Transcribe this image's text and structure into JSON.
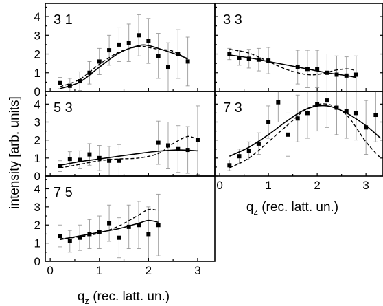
{
  "y_axis_title": "intensity [arb. units]",
  "x_axis_title_left": {
    "main": "q",
    "sub": "z",
    "rest": " (rec. latt. un.)"
  },
  "x_axis_title_right": {
    "main": "q",
    "sub": "z",
    "rest": " (rec. latt. un.)"
  },
  "x_ticks": [
    "0",
    "1",
    "2",
    "3"
  ],
  "y_ticks": [
    "0",
    "1",
    "2",
    "3",
    "4"
  ],
  "chart_data": [
    {
      "type": "scatter",
      "label": "3 1",
      "xlim": [
        -0.1,
        3.35
      ],
      "ylim": [
        0,
        4.7
      ],
      "points": [
        {
          "x": 0.2,
          "y": 0.45,
          "err": 0.3
        },
        {
          "x": 0.4,
          "y": 0.3,
          "err": 0.4
        },
        {
          "x": 0.6,
          "y": 0.55,
          "err": 0.5
        },
        {
          "x": 0.8,
          "y": 1.0,
          "err": 0.6
        },
        {
          "x": 1.0,
          "y": 1.6,
          "err": 0.7
        },
        {
          "x": 1.2,
          "y": 2.2,
          "err": 0.8
        },
        {
          "x": 1.4,
          "y": 2.5,
          "err": 0.9
        },
        {
          "x": 1.6,
          "y": 2.6,
          "err": 1.0
        },
        {
          "x": 1.8,
          "y": 3.0,
          "err": 1.1
        },
        {
          "x": 2.0,
          "y": 2.7,
          "err": 1.2
        },
        {
          "x": 2.2,
          "y": 1.9,
          "err": 1.2
        },
        {
          "x": 2.4,
          "y": 1.3,
          "err": 1.3
        },
        {
          "x": 2.6,
          "y": 2.0,
          "err": 1.3
        },
        {
          "x": 2.8,
          "y": 1.6,
          "err": 1.3
        }
      ],
      "solid": [
        [
          0.2,
          0.15
        ],
        [
          0.6,
          0.5
        ],
        [
          1.0,
          1.3
        ],
        [
          1.4,
          2.05
        ],
        [
          1.8,
          2.45
        ],
        [
          2.0,
          2.45
        ],
        [
          2.2,
          2.3
        ],
        [
          2.6,
          1.95
        ],
        [
          2.8,
          1.75
        ]
      ],
      "dashed": [
        [
          0.2,
          0.25
        ],
        [
          0.6,
          0.65
        ],
        [
          1.0,
          1.45
        ],
        [
          1.4,
          2.1
        ],
        [
          1.8,
          2.4
        ],
        [
          2.0,
          2.35
        ],
        [
          2.2,
          2.25
        ],
        [
          2.5,
          2.15
        ],
        [
          2.8,
          1.7
        ]
      ]
    },
    {
      "type": "scatter",
      "label": "3 3",
      "xlim": [
        -0.1,
        3.35
      ],
      "ylim": [
        0,
        4.7
      ],
      "points": [
        {
          "x": 0.2,
          "y": 2.0,
          "err": 0.3
        },
        {
          "x": 0.4,
          "y": 1.8,
          "err": 0.4
        },
        {
          "x": 0.6,
          "y": 1.75,
          "err": 0.5
        },
        {
          "x": 0.8,
          "y": 1.7,
          "err": 0.6
        },
        {
          "x": 1.0,
          "y": 1.65,
          "err": 0.7
        },
        {
          "x": 1.6,
          "y": 1.3,
          "err": 0.9
        },
        {
          "x": 1.8,
          "y": 1.2,
          "err": 1.0
        },
        {
          "x": 2.0,
          "y": 1.2,
          "err": 1.0
        },
        {
          "x": 2.2,
          "y": 1.0,
          "err": 1.0
        },
        {
          "x": 2.4,
          "y": 0.9,
          "err": 1.0
        },
        {
          "x": 2.6,
          "y": 0.85,
          "err": 1.0
        },
        {
          "x": 2.8,
          "y": 0.9,
          "err": 1.0
        }
      ],
      "solid": [
        [
          0.2,
          1.95
        ],
        [
          0.6,
          1.8
        ],
        [
          1.0,
          1.6
        ],
        [
          1.4,
          1.4
        ],
        [
          1.8,
          1.2
        ],
        [
          2.2,
          1.0
        ],
        [
          2.6,
          0.85
        ],
        [
          2.8,
          0.75
        ]
      ],
      "dashed": [
        [
          0.2,
          2.25
        ],
        [
          0.6,
          2.05
        ],
        [
          1.0,
          1.6
        ],
        [
          1.4,
          1.15
        ],
        [
          1.8,
          0.9
        ],
        [
          2.1,
          0.95
        ],
        [
          2.4,
          1.15
        ],
        [
          2.65,
          1.2
        ],
        [
          2.8,
          1.1
        ]
      ]
    },
    {
      "type": "scatter",
      "label": "5 3",
      "xlim": [
        -0.1,
        3.35
      ],
      "ylim": [
        0,
        4.7
      ],
      "points": [
        {
          "x": 0.2,
          "y": 0.55,
          "err": 0.3
        },
        {
          "x": 0.4,
          "y": 0.95,
          "err": 0.4
        },
        {
          "x": 0.6,
          "y": 0.9,
          "err": 0.5
        },
        {
          "x": 0.8,
          "y": 1.2,
          "err": 0.6
        },
        {
          "x": 1.0,
          "y": 1.0,
          "err": 0.7
        },
        {
          "x": 1.2,
          "y": 0.85,
          "err": 0.8
        },
        {
          "x": 1.4,
          "y": 0.85,
          "err": 0.9
        },
        {
          "x": 2.2,
          "y": 1.85,
          "err": 1.2
        },
        {
          "x": 2.4,
          "y": 1.7,
          "err": 1.3
        },
        {
          "x": 2.6,
          "y": 1.5,
          "err": 1.3
        },
        {
          "x": 2.8,
          "y": 1.45,
          "err": 1.3
        },
        {
          "x": 3.0,
          "y": 2.0,
          "err": 1.9
        }
      ],
      "solid": [
        [
          0.2,
          0.6
        ],
        [
          0.6,
          0.8
        ],
        [
          1.0,
          0.95
        ],
        [
          1.4,
          1.1
        ],
        [
          1.8,
          1.25
        ],
        [
          2.2,
          1.38
        ],
        [
          2.6,
          1.45
        ],
        [
          3.0,
          1.4
        ]
      ],
      "dashed": [
        [
          0.2,
          0.45
        ],
        [
          0.6,
          0.65
        ],
        [
          1.0,
          0.85
        ],
        [
          1.4,
          0.95
        ],
        [
          1.8,
          1.0
        ],
        [
          2.2,
          1.25
        ],
        [
          2.5,
          1.8
        ],
        [
          2.8,
          2.2
        ],
        [
          3.0,
          2.0
        ]
      ]
    },
    {
      "type": "scatter",
      "label": "7 3",
      "xlim": [
        -0.1,
        3.35
      ],
      "ylim": [
        0,
        4.7
      ],
      "points": [
        {
          "x": 0.2,
          "y": 0.6,
          "err": 0.3
        },
        {
          "x": 0.4,
          "y": 1.1,
          "err": 0.4
        },
        {
          "x": 0.6,
          "y": 1.4,
          "err": 0.5
        },
        {
          "x": 0.8,
          "y": 1.8,
          "err": 0.6
        },
        {
          "x": 1.0,
          "y": 3.0,
          "err": 0.9
        },
        {
          "x": 1.2,
          "y": 4.1,
          "err": 1.1
        },
        {
          "x": 1.4,
          "y": 2.3,
          "err": 1.2
        },
        {
          "x": 1.6,
          "y": 3.2,
          "err": 1.3
        },
        {
          "x": 1.8,
          "y": 3.5,
          "err": 1.4
        },
        {
          "x": 2.0,
          "y": 4.0,
          "err": 1.5
        },
        {
          "x": 2.2,
          "y": 4.2,
          "err": 1.5
        },
        {
          "x": 2.4,
          "y": 3.8,
          "err": 1.5
        },
        {
          "x": 2.6,
          "y": 3.6,
          "err": 1.5
        },
        {
          "x": 2.8,
          "y": 3.5,
          "err": 1.5
        },
        {
          "x": 3.0,
          "y": 2.7,
          "err": 1.5
        },
        {
          "x": 3.2,
          "y": 3.4,
          "err": 1.5
        }
      ],
      "solid": [
        [
          0.2,
          1.1
        ],
        [
          0.6,
          1.6
        ],
        [
          1.0,
          2.3
        ],
        [
          1.4,
          3.1
        ],
        [
          1.8,
          3.75
        ],
        [
          2.2,
          3.9
        ],
        [
          2.6,
          3.5
        ],
        [
          3.0,
          2.8
        ],
        [
          3.3,
          2.1
        ]
      ],
      "dashed": [
        [
          0.2,
          0.45
        ],
        [
          0.6,
          1.0
        ],
        [
          1.0,
          1.9
        ],
        [
          1.4,
          2.85
        ],
        [
          1.8,
          3.75
        ],
        [
          2.2,
          4.0
        ],
        [
          2.6,
          3.4
        ],
        [
          3.0,
          1.9
        ],
        [
          3.3,
          1.0
        ]
      ]
    },
    {
      "type": "scatter",
      "label": "7 5",
      "xlim": [
        -0.1,
        3.35
      ],
      "ylim": [
        0,
        4.7
      ],
      "points": [
        {
          "x": 0.2,
          "y": 1.4,
          "err": 0.6
        },
        {
          "x": 0.4,
          "y": 1.1,
          "err": 0.6
        },
        {
          "x": 0.6,
          "y": 1.3,
          "err": 0.7
        },
        {
          "x": 0.8,
          "y": 1.5,
          "err": 0.8
        },
        {
          "x": 1.0,
          "y": 1.6,
          "err": 0.9
        },
        {
          "x": 1.2,
          "y": 2.1,
          "err": 1.0
        },
        {
          "x": 1.4,
          "y": 1.3,
          "err": 1.1
        },
        {
          "x": 1.6,
          "y": 1.9,
          "err": 1.2
        },
        {
          "x": 1.8,
          "y": 2.0,
          "err": 1.3
        },
        {
          "x": 2.0,
          "y": 1.5,
          "err": 1.5
        },
        {
          "x": 2.2,
          "y": 2.0,
          "err": 1.7
        }
      ],
      "solid": [
        [
          0.2,
          1.2
        ],
        [
          0.6,
          1.4
        ],
        [
          1.0,
          1.6
        ],
        [
          1.4,
          1.8
        ],
        [
          1.8,
          2.1
        ],
        [
          2.0,
          2.25
        ],
        [
          2.2,
          2.15
        ]
      ],
      "dashed": [
        [
          0.2,
          1.25
        ],
        [
          0.6,
          1.35
        ],
        [
          1.0,
          1.55
        ],
        [
          1.4,
          1.95
        ],
        [
          1.8,
          2.55
        ],
        [
          2.0,
          2.85
        ],
        [
          2.2,
          2.8
        ]
      ]
    }
  ]
}
